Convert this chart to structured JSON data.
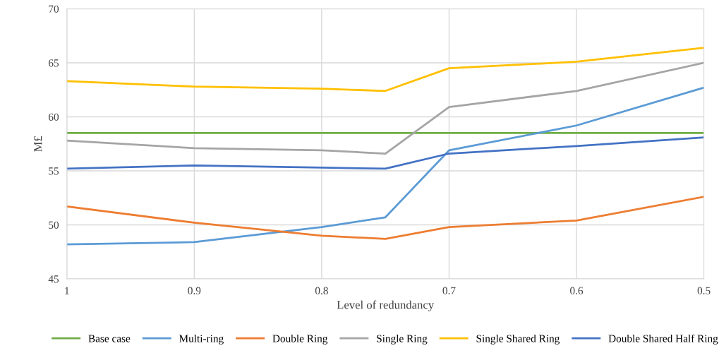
{
  "chart_data": {
    "type": "line",
    "xlabel": "Level of redundancy",
    "ylabel": "M£",
    "x": [
      1,
      0.9,
      0.8,
      0.75,
      0.7,
      0.6,
      0.5
    ],
    "xlim": [
      1,
      0.5
    ],
    "xticks": [
      1,
      0.9,
      0.8,
      0.7,
      0.6,
      0.5
    ],
    "ylim": [
      45,
      70
    ],
    "yticks": [
      45,
      50,
      55,
      60,
      65,
      70
    ],
    "grid": true,
    "legend": "bottom",
    "marker": "none",
    "line_style": "solid",
    "series": [
      {
        "name": "Base case",
        "color": "#70ad47",
        "values": [
          58.5,
          58.5,
          58.5,
          58.5,
          58.5,
          58.5,
          58.5
        ]
      },
      {
        "name": "Multi-ring",
        "color": "#5b9bd5",
        "values": [
          48.2,
          48.4,
          49.8,
          50.7,
          56.9,
          59.2,
          62.7
        ]
      },
      {
        "name": "Double Ring",
        "color": "#ed7d31",
        "values": [
          51.7,
          50.2,
          49.0,
          48.7,
          49.8,
          50.4,
          52.6
        ]
      },
      {
        "name": "Single Ring",
        "color": "#a5a5a5",
        "values": [
          57.8,
          57.1,
          56.9,
          56.6,
          60.9,
          62.4,
          65.0
        ]
      },
      {
        "name": "Single Shared Ring",
        "color": "#ffc000",
        "values": [
          63.3,
          62.8,
          62.6,
          62.4,
          64.5,
          65.1,
          66.4
        ]
      },
      {
        "name": "Double Shared Half Ring",
        "color": "#4472c4",
        "values": [
          55.2,
          55.5,
          55.3,
          55.2,
          56.6,
          57.3,
          58.1
        ]
      }
    ]
  }
}
